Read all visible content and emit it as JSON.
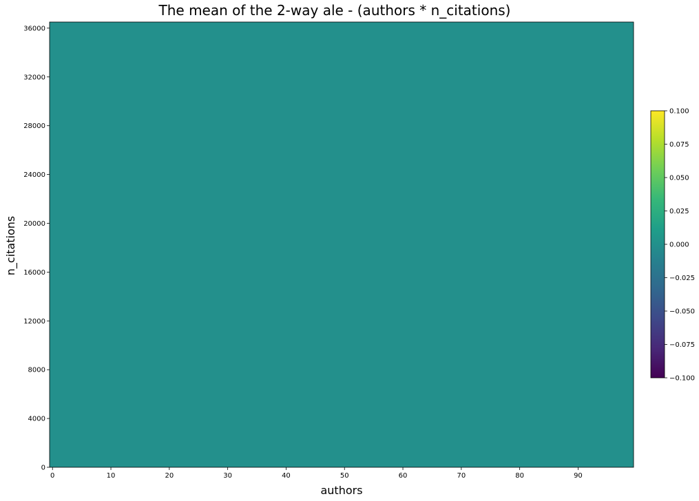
{
  "chart_data": {
    "type": "heatmap",
    "title": "The mean of the 2-way ale - (authors * n_citations)",
    "xlabel": "authors",
    "ylabel": "n_citations",
    "xlim": [
      -0.5,
      99.5
    ],
    "ylim": [
      0,
      36500
    ],
    "x_ticks": [
      0,
      10,
      20,
      30,
      40,
      50,
      60,
      70,
      80,
      90
    ],
    "y_ticks": [
      0,
      4000,
      8000,
      12000,
      16000,
      20000,
      24000,
      28000,
      32000,
      36000
    ],
    "cells": [
      {
        "x_range": [
          -0.5,
          99.5
        ],
        "y_range": [
          0,
          36500
        ],
        "value": 0.0
      }
    ],
    "colorbar": {
      "colormap": "viridis",
      "range": [
        -0.1,
        0.1
      ],
      "ticks": [
        "0.100",
        "0.075",
        "0.050",
        "0.025",
        "0.000",
        "−0.025",
        "−0.050",
        "−0.075",
        "−0.100"
      ],
      "tick_values": [
        0.1,
        0.075,
        0.05,
        0.025,
        0.0,
        -0.025,
        -0.05,
        -0.075,
        -0.1
      ]
    },
    "grid": false,
    "legend": "none"
  },
  "colors": {
    "cmap_stops": [
      "#440154",
      "#482878",
      "#3e4989",
      "#31688e",
      "#26828e",
      "#1f9e89",
      "#35b779",
      "#6ece58",
      "#b5de2b",
      "#fde725"
    ]
  }
}
